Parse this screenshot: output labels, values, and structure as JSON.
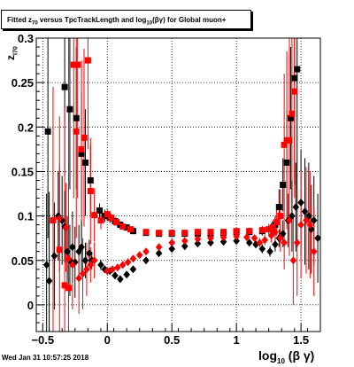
{
  "title_parts": {
    "pre": "Fitted  z",
    "sub1": "70",
    "mid": " versus TpcTrackLength and log",
    "sub2": "10",
    "post": "(βγ) for Global muon+"
  },
  "footer": {
    "datestamp": "Wed Jan 31 10:57:25 2018"
  },
  "axes": {
    "xlabel_main": "log",
    "xlabel_sub": "10",
    "xlabel_tail": "(β γ)",
    "ylabel_main": "z",
    "ylabel_sub": "I70"
  },
  "chart_data": {
    "type": "scatter",
    "xlim": [
      -0.55,
      1.65
    ],
    "ylim": [
      -0.03,
      0.3
    ],
    "grid": true,
    "x_ticks": [
      -0.5,
      0,
      0.5,
      1,
      1.5
    ],
    "x_tick_labels": [
      "−0.5",
      "0",
      "0.5",
      "1",
      "1.5"
    ],
    "y_ticks": [
      0,
      0.05,
      0.1,
      0.15,
      0.2,
      0.25,
      0.3
    ],
    "y_tick_labels": [
      "0",
      "0.05",
      "0.1",
      "0.15",
      "0.2",
      "0.25",
      "0.3"
    ],
    "series": [
      {
        "marker": "square",
        "color": "#000000",
        "points": [
          {
            "x": -0.46,
            "y": 0.195,
            "e": 0.12
          },
          {
            "x": -0.33,
            "y": 0.245,
            "e": 0.1
          },
          {
            "x": -0.29,
            "y": 0.22,
            "e": 0.09
          },
          {
            "x": -0.24,
            "y": 0.21,
            "e": 0.08
          },
          {
            "x": -0.2,
            "y": 0.17,
            "e": 0.07
          },
          {
            "x": -0.17,
            "y": 0.16,
            "e": 0.06
          },
          {
            "x": -0.13,
            "y": 0.14,
            "e": 0.04
          },
          {
            "x": -0.06,
            "y": 0.106,
            "e": 0.008
          },
          {
            "x": -0.02,
            "y": 0.1,
            "e": 0.007
          },
          {
            "x": 0.02,
            "y": 0.098,
            "e": 0.006
          },
          {
            "x": 0.06,
            "y": 0.094,
            "e": 0.005
          },
          {
            "x": 0.1,
            "y": 0.09,
            "e": 0.004
          },
          {
            "x": 0.15,
            "y": 0.087,
            "e": 0.003
          },
          {
            "x": 0.2,
            "y": 0.083,
            "e": 0.003
          },
          {
            "x": 0.3,
            "y": 0.081,
            "e": 0.002
          },
          {
            "x": 0.4,
            "y": 0.08,
            "e": 0.002
          },
          {
            "x": 0.5,
            "y": 0.08,
            "e": 0.002
          },
          {
            "x": 0.6,
            "y": 0.08,
            "e": 0.002
          },
          {
            "x": 0.7,
            "y": 0.08,
            "e": 0.002
          },
          {
            "x": 0.8,
            "y": 0.08,
            "e": 0.002
          },
          {
            "x": 0.9,
            "y": 0.081,
            "e": 0.002
          },
          {
            "x": 1.0,
            "y": 0.082,
            "e": 0.003
          },
          {
            "x": 1.1,
            "y": 0.082,
            "e": 0.004
          },
          {
            "x": 1.2,
            "y": 0.083,
            "e": 0.005
          },
          {
            "x": 1.27,
            "y": 0.085,
            "e": 0.007
          },
          {
            "x": 1.3,
            "y": 0.09,
            "e": 0.01
          },
          {
            "x": 1.33,
            "y": 0.11,
            "e": 0.02
          },
          {
            "x": 1.36,
            "y": 0.135,
            "e": 0.03
          },
          {
            "x": 1.39,
            "y": 0.16,
            "e": 0.06
          },
          {
            "x": 1.42,
            "y": 0.21,
            "e": 0.08
          },
          {
            "x": 1.45,
            "y": 0.255,
            "e": 0.12
          },
          {
            "x": 1.47,
            "y": 0.265,
            "e": 0.2
          }
        ]
      },
      {
        "marker": "square",
        "color": "#ff0000",
        "points": [
          {
            "x": -0.42,
            "y": 0.095,
            "e": 0.15
          },
          {
            "x": -0.37,
            "y": 0.062,
            "e": 0.15
          },
          {
            "x": -0.33,
            "y": 0.022,
            "e": 0.2
          },
          {
            "x": -0.3,
            "y": 0.019,
            "e": 0.3
          },
          {
            "x": -0.26,
            "y": 0.27,
            "e": 0.15
          },
          {
            "x": -0.24,
            "y": 0.195,
            "e": 0.12
          },
          {
            "x": -0.23,
            "y": 0.27,
            "e": 0.15
          },
          {
            "x": -0.2,
            "y": 0.175,
            "e": 0.1
          },
          {
            "x": -0.18,
            "y": 0.188,
            "e": 0.1
          },
          {
            "x": -0.15,
            "y": 0.275,
            "e": 0.1
          },
          {
            "x": -0.13,
            "y": 0.128,
            "e": 0.06
          },
          {
            "x": -0.1,
            "y": 0.101,
            "e": 0.03
          },
          {
            "x": -0.05,
            "y": 0.095,
            "e": 0.01
          },
          {
            "x": 0.0,
            "y": 0.102,
            "e": 0.006
          },
          {
            "x": 0.03,
            "y": 0.098,
            "e": 0.005
          },
          {
            "x": 0.07,
            "y": 0.093,
            "e": 0.004
          },
          {
            "x": 0.12,
            "y": 0.088,
            "e": 0.003
          },
          {
            "x": 0.18,
            "y": 0.085,
            "e": 0.003
          },
          {
            "x": 0.3,
            "y": 0.082,
            "e": 0.002
          },
          {
            "x": 0.4,
            "y": 0.081,
            "e": 0.002
          },
          {
            "x": 0.5,
            "y": 0.081,
            "e": 0.002
          },
          {
            "x": 0.6,
            "y": 0.081,
            "e": 0.002
          },
          {
            "x": 0.7,
            "y": 0.082,
            "e": 0.002
          },
          {
            "x": 0.8,
            "y": 0.082,
            "e": 0.002
          },
          {
            "x": 0.9,
            "y": 0.082,
            "e": 0.002
          },
          {
            "x": 1.0,
            "y": 0.083,
            "e": 0.003
          },
          {
            "x": 1.1,
            "y": 0.083,
            "e": 0.004
          },
          {
            "x": 1.2,
            "y": 0.084,
            "e": 0.005
          },
          {
            "x": 1.25,
            "y": 0.085,
            "e": 0.006
          },
          {
            "x": 1.28,
            "y": 0.087,
            "e": 0.008
          },
          {
            "x": 1.31,
            "y": 0.093,
            "e": 0.015
          },
          {
            "x": 1.34,
            "y": 0.1,
            "e": 0.03
          },
          {
            "x": 1.37,
            "y": 0.18,
            "e": 0.08
          },
          {
            "x": 1.39,
            "y": 0.185,
            "e": 0.1
          },
          {
            "x": 1.41,
            "y": 0.185,
            "e": 0.12
          },
          {
            "x": 1.43,
            "y": 0.215,
            "e": 0.1
          },
          {
            "x": 1.45,
            "y": 0.24,
            "e": 0.12
          }
        ]
      },
      {
        "marker": "diamond",
        "color": "#000000",
        "points": [
          {
            "x": -0.47,
            "y": 0.045,
            "e": 0.08
          },
          {
            "x": -0.45,
            "y": 0.027,
            "e": 0.1
          },
          {
            "x": -0.41,
            "y": 0.055,
            "e": 0.06
          },
          {
            "x": -0.38,
            "y": 0.1,
            "e": 0.05
          },
          {
            "x": -0.35,
            "y": 0.095,
            "e": 0.05
          },
          {
            "x": -0.33,
            "y": 0.088,
            "e": 0.04
          },
          {
            "x": -0.31,
            "y": 0.06,
            "e": 0.04
          },
          {
            "x": -0.29,
            "y": 0.05,
            "e": 0.04
          },
          {
            "x": -0.27,
            "y": 0.065,
            "e": 0.04
          },
          {
            "x": -0.25,
            "y": 0.048,
            "e": 0.04
          },
          {
            "x": -0.22,
            "y": 0.06,
            "e": 0.03
          },
          {
            "x": -0.2,
            "y": 0.065,
            "e": 0.03
          },
          {
            "x": -0.17,
            "y": 0.05,
            "e": 0.02
          },
          {
            "x": -0.14,
            "y": 0.058,
            "e": 0.015
          },
          {
            "x": -0.12,
            "y": 0.05,
            "e": 0.01
          },
          {
            "x": -0.05,
            "y": 0.045,
            "e": 0.006
          },
          {
            "x": -0.02,
            "y": 0.04,
            "e": 0.004
          },
          {
            "x": 0.02,
            "y": 0.038,
            "e": 0.003
          },
          {
            "x": 0.06,
            "y": 0.033,
            "e": 0.003
          },
          {
            "x": 0.1,
            "y": 0.029,
            "e": 0.003
          },
          {
            "x": 0.15,
            "y": 0.034,
            "e": 0.003
          },
          {
            "x": 0.2,
            "y": 0.04,
            "e": 0.003
          },
          {
            "x": 0.3,
            "y": 0.05,
            "e": 0.002
          },
          {
            "x": 0.4,
            "y": 0.058,
            "e": 0.002
          },
          {
            "x": 0.5,
            "y": 0.063,
            "e": 0.002
          },
          {
            "x": 0.6,
            "y": 0.066,
            "e": 0.002
          },
          {
            "x": 0.7,
            "y": 0.069,
            "e": 0.002
          },
          {
            "x": 0.8,
            "y": 0.07,
            "e": 0.002
          },
          {
            "x": 0.9,
            "y": 0.071,
            "e": 0.002
          },
          {
            "x": 1.0,
            "y": 0.072,
            "e": 0.003
          },
          {
            "x": 1.1,
            "y": 0.07,
            "e": 0.004
          },
          {
            "x": 1.15,
            "y": 0.068,
            "e": 0.004
          },
          {
            "x": 1.2,
            "y": 0.063,
            "e": 0.005
          },
          {
            "x": 1.26,
            "y": 0.06,
            "e": 0.006
          },
          {
            "x": 1.3,
            "y": 0.068,
            "e": 0.008
          },
          {
            "x": 1.33,
            "y": 0.075,
            "e": 0.01
          },
          {
            "x": 1.36,
            "y": 0.08,
            "e": 0.015
          },
          {
            "x": 1.4,
            "y": 0.095,
            "e": 0.03
          },
          {
            "x": 1.43,
            "y": 0.1,
            "e": 0.04
          },
          {
            "x": 1.46,
            "y": 0.11,
            "e": 0.05
          },
          {
            "x": 1.5,
            "y": 0.115,
            "e": 0.06
          },
          {
            "x": 1.53,
            "y": 0.105,
            "e": 0.06
          },
          {
            "x": 1.56,
            "y": 0.1,
            "e": 0.06
          },
          {
            "x": 1.58,
            "y": 0.085,
            "e": 0.05
          },
          {
            "x": 1.6,
            "y": 0.095,
            "e": 0.05
          },
          {
            "x": 1.63,
            "y": 0.075,
            "e": 0.05
          }
        ]
      },
      {
        "marker": "diamond",
        "color": "#ff0000",
        "points": [
          {
            "x": -0.37,
            "y": 0.097,
            "e": 0.06
          },
          {
            "x": -0.32,
            "y": 0.087,
            "e": 0.05
          },
          {
            "x": -0.3,
            "y": 0.052,
            "e": 0.05
          },
          {
            "x": -0.27,
            "y": 0.045,
            "e": 0.05
          },
          {
            "x": -0.22,
            "y": 0.03,
            "e": 0.04
          },
          {
            "x": -0.19,
            "y": 0.035,
            "e": 0.04
          },
          {
            "x": -0.16,
            "y": 0.04,
            "e": 0.03
          },
          {
            "x": -0.13,
            "y": 0.045,
            "e": 0.02
          },
          {
            "x": -0.1,
            "y": 0.05,
            "e": 0.02
          },
          {
            "x": 0.0,
            "y": 0.038,
            "e": 0.004
          },
          {
            "x": 0.04,
            "y": 0.04,
            "e": 0.003
          },
          {
            "x": 0.08,
            "y": 0.042,
            "e": 0.003
          },
          {
            "x": 0.12,
            "y": 0.045,
            "e": 0.003
          },
          {
            "x": 0.16,
            "y": 0.048,
            "e": 0.003
          },
          {
            "x": 0.2,
            "y": 0.052,
            "e": 0.003
          },
          {
            "x": 0.25,
            "y": 0.056,
            "e": 0.003
          },
          {
            "x": 0.3,
            "y": 0.06,
            "e": 0.002
          },
          {
            "x": 0.4,
            "y": 0.065,
            "e": 0.002
          },
          {
            "x": 0.5,
            "y": 0.07,
            "e": 0.002
          },
          {
            "x": 0.6,
            "y": 0.072,
            "e": 0.002
          },
          {
            "x": 0.7,
            "y": 0.074,
            "e": 0.002
          },
          {
            "x": 0.8,
            "y": 0.075,
            "e": 0.002
          },
          {
            "x": 0.9,
            "y": 0.076,
            "e": 0.002
          },
          {
            "x": 1.0,
            "y": 0.077,
            "e": 0.003
          },
          {
            "x": 1.08,
            "y": 0.076,
            "e": 0.004
          },
          {
            "x": 1.14,
            "y": 0.075,
            "e": 0.004
          },
          {
            "x": 1.18,
            "y": 0.07,
            "e": 0.005
          },
          {
            "x": 1.22,
            "y": 0.073,
            "e": 0.006
          },
          {
            "x": 1.27,
            "y": 0.078,
            "e": 0.008
          },
          {
            "x": 1.3,
            "y": 0.082,
            "e": 0.01
          },
          {
            "x": 1.34,
            "y": 0.075,
            "e": 0.015
          },
          {
            "x": 1.37,
            "y": 0.07,
            "e": 0.03
          },
          {
            "x": 1.41,
            "y": 0.095,
            "e": 0.04
          },
          {
            "x": 1.44,
            "y": 0.05,
            "e": 0.05
          },
          {
            "x": 1.47,
            "y": 0.07,
            "e": 0.06
          },
          {
            "x": 1.5,
            "y": 0.09,
            "e": 0.06
          },
          {
            "x": 1.54,
            "y": 0.095,
            "e": 0.06
          },
          {
            "x": 1.57,
            "y": 0.09,
            "e": 0.06
          },
          {
            "x": 1.6,
            "y": 0.06,
            "e": 0.05
          }
        ]
      }
    ]
  }
}
